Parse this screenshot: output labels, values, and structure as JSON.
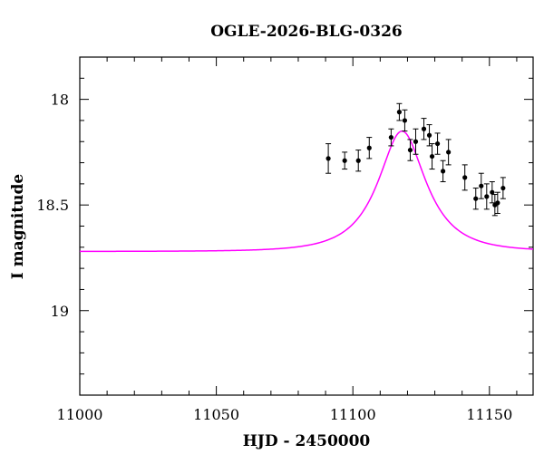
{
  "chart_data": {
    "type": "scatter",
    "title": "OGLE-2026-BLG-0326",
    "xlabel": "HJD - 2450000",
    "ylabel": "I magnitude",
    "xlim": [
      11000,
      11166
    ],
    "ylim": [
      19.4,
      17.8
    ],
    "y_inverted": true,
    "x_ticks": [
      11000,
      11050,
      11100,
      11150
    ],
    "y_ticks": [
      18,
      18.5,
      19
    ],
    "y_tick_labels": [
      "18",
      "18.5",
      "19"
    ],
    "model_color": "#ff00ff",
    "marker_color": "#000000",
    "model": {
      "type": "microlensing-paczynski",
      "t0": 11118,
      "tE": 17,
      "u0": 0.55,
      "base_mag": 18.72,
      "peak_mag": 18.15
    },
    "series": [
      {
        "points": [
          {
            "x": 11091,
            "y": 18.28,
            "err": 0.07
          },
          {
            "x": 11097,
            "y": 18.29,
            "err": 0.04
          },
          {
            "x": 11102,
            "y": 18.29,
            "err": 0.05
          },
          {
            "x": 11106,
            "y": 18.23,
            "err": 0.05
          },
          {
            "x": 11114,
            "y": 18.18,
            "err": 0.04
          },
          {
            "x": 11117,
            "y": 18.06,
            "err": 0.04
          },
          {
            "x": 11119,
            "y": 18.1,
            "err": 0.05
          },
          {
            "x": 11121,
            "y": 18.24,
            "err": 0.05
          },
          {
            "x": 11123,
            "y": 18.2,
            "err": 0.06
          },
          {
            "x": 11126,
            "y": 18.14,
            "err": 0.05
          },
          {
            "x": 11128,
            "y": 18.17,
            "err": 0.05
          },
          {
            "x": 11129,
            "y": 18.27,
            "err": 0.06
          },
          {
            "x": 11131,
            "y": 18.21,
            "err": 0.05
          },
          {
            "x": 11133,
            "y": 18.34,
            "err": 0.05
          },
          {
            "x": 11135,
            "y": 18.25,
            "err": 0.06
          },
          {
            "x": 11141,
            "y": 18.37,
            "err": 0.06
          },
          {
            "x": 11145,
            "y": 18.47,
            "err": 0.05
          },
          {
            "x": 11147,
            "y": 18.41,
            "err": 0.06
          },
          {
            "x": 11149,
            "y": 18.46,
            "err": 0.06
          },
          {
            "x": 11151,
            "y": 18.44,
            "err": 0.05
          },
          {
            "x": 11152,
            "y": 18.5,
            "err": 0.05
          },
          {
            "x": 11153,
            "y": 18.49,
            "err": 0.05
          },
          {
            "x": 11155,
            "y": 18.42,
            "err": 0.05
          }
        ]
      }
    ]
  }
}
